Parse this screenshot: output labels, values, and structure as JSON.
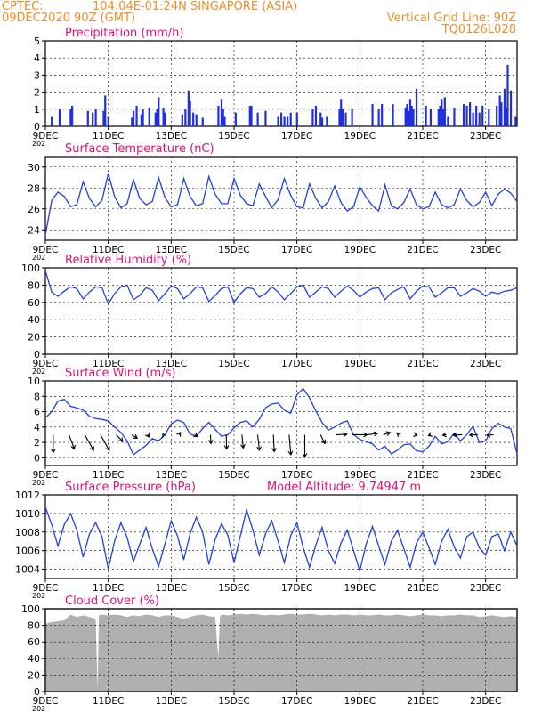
{
  "header": {
    "line1_left": "CPTEC:",
    "location": "104:04E-01:24N   SINGAPORE (ASIA)",
    "date_line": "09DEC2020 90Z (GMT)",
    "grid_note": "Vertical Grid Line: 90Z",
    "code": "TQ0126L028"
  },
  "colors": {
    "header": "#f08c28",
    "title": "#e0107a",
    "line": "#2040e0",
    "bar": "#2030e0",
    "cloud": "#b0b0b0",
    "arrow": "#000000"
  },
  "x_axis": {
    "ticks": [
      {
        "day": 9,
        "label": "9DEC"
      },
      {
        "day": 11,
        "label": "11DEC"
      },
      {
        "day": 13,
        "label": "13DEC"
      },
      {
        "day": 15,
        "label": "15DEC"
      },
      {
        "day": 17,
        "label": "17DEC"
      },
      {
        "day": 19,
        "label": "19DEC"
      },
      {
        "day": 21,
        "label": "21DEC"
      },
      {
        "day": 23,
        "label": "23DEC"
      }
    ],
    "year_fragment": "202",
    "range": [
      9,
      24
    ]
  },
  "chart_data": [
    {
      "type": "bar",
      "title": "Precipitation (mm/h)",
      "ylim": [
        0,
        5
      ],
      "yticks": [
        0,
        1,
        2,
        3,
        4,
        5
      ],
      "x": [
        9.2,
        9.45,
        9.8,
        9.85,
        10.35,
        10.5,
        10.6,
        10.85,
        10.9,
        11.0,
        11.75,
        11.8,
        11.9,
        12.05,
        12.1,
        12.3,
        12.5,
        12.55,
        12.6,
        12.75,
        12.8,
        13.35,
        13.45,
        13.55,
        13.6,
        13.7,
        13.8,
        14.0,
        14.5,
        14.6,
        14.65,
        14.7,
        15.05,
        15.5,
        15.55,
        15.75,
        16.0,
        16.4,
        16.5,
        16.6,
        16.7,
        16.8,
        17.0,
        17.5,
        17.6,
        17.75,
        17.8,
        17.95,
        18.35,
        18.4,
        18.45,
        18.55,
        18.75,
        19.4,
        19.6,
        19.7,
        20.05,
        20.45,
        20.5,
        20.55,
        20.6,
        20.65,
        20.7,
        20.8,
        21.1,
        21.25,
        21.5,
        21.55,
        21.6,
        21.65,
        21.7,
        21.8,
        22.0,
        22.3,
        22.4,
        22.5,
        22.6,
        22.7,
        22.8,
        22.9,
        23.1,
        23.35,
        23.45,
        23.5,
        23.6,
        23.65,
        23.7,
        23.8,
        23.95
      ],
      "values": [
        0.6,
        1.0,
        1.0,
        1.2,
        0.9,
        0.8,
        1.0,
        0.9,
        1.8,
        0.6,
        0.5,
        0.9,
        1.2,
        0.7,
        1.0,
        1.1,
        0.8,
        1.0,
        1.7,
        1.1,
        0.8,
        0.7,
        1.0,
        2.1,
        1.5,
        0.8,
        0.7,
        0.5,
        1.2,
        1.6,
        1.0,
        0.6,
        0.8,
        1.2,
        1.2,
        0.8,
        0.9,
        0.6,
        0.8,
        0.6,
        0.6,
        0.8,
        0.8,
        1.0,
        1.2,
        0.8,
        0.5,
        0.6,
        1.0,
        1.6,
        1.0,
        0.8,
        1.0,
        1.3,
        1.0,
        1.3,
        1.3,
        1.1,
        1.3,
        0.9,
        1.6,
        1.2,
        1.0,
        2.2,
        1.2,
        1.0,
        1.0,
        1.2,
        1.6,
        1.0,
        1.7,
        0.6,
        1.1,
        1.3,
        1.2,
        1.4,
        0.8,
        1.2,
        0.8,
        1.2,
        1.0,
        1.2,
        1.8,
        1.4,
        2.2,
        1.1,
        3.6,
        2.1,
        0.6
      ]
    },
    {
      "type": "line",
      "title": "Surface Temperature (nC)",
      "ylim": [
        23,
        31
      ],
      "yticks": [
        24,
        26,
        28,
        30
      ],
      "x": [
        9.0,
        9.2,
        9.4,
        9.6,
        9.8,
        10.0,
        10.2,
        10.4,
        10.6,
        10.8,
        11.0,
        11.2,
        11.4,
        11.6,
        11.8,
        12.0,
        12.2,
        12.4,
        12.6,
        12.8,
        13.0,
        13.2,
        13.4,
        13.6,
        13.8,
        14.0,
        14.2,
        14.4,
        14.6,
        14.8,
        15.0,
        15.2,
        15.4,
        15.6,
        15.8,
        16.0,
        16.2,
        16.4,
        16.6,
        16.8,
        17.0,
        17.2,
        17.4,
        17.6,
        17.8,
        18.0,
        18.2,
        18.4,
        18.6,
        18.8,
        19.0,
        19.2,
        19.4,
        19.6,
        19.8,
        20.0,
        20.2,
        20.4,
        20.6,
        20.8,
        21.0,
        21.2,
        21.4,
        21.6,
        21.8,
        22.0,
        22.2,
        22.4,
        22.6,
        22.8,
        23.0,
        23.2,
        23.4,
        23.6,
        23.8,
        24.0
      ],
      "values": [
        23.5,
        26.8,
        27.6,
        27.2,
        26.2,
        26.4,
        28.6,
        27.0,
        26.2,
        26.8,
        29.4,
        27.2,
        26.1,
        26.5,
        28.8,
        27.0,
        26.4,
        26.7,
        29.0,
        27.1,
        26.2,
        26.4,
        28.9,
        27.2,
        26.3,
        26.5,
        29.1,
        27.4,
        26.5,
        26.5,
        28.9,
        27.3,
        26.5,
        26.3,
        28.4,
        27.2,
        26.1,
        26.9,
        28.9,
        27.3,
        26.2,
        26.1,
        28.4,
        27.0,
        26.1,
        26.7,
        28.2,
        26.6,
        25.8,
        26.2,
        28.1,
        27.1,
        26.3,
        25.8,
        28.3,
        26.3,
        26.0,
        26.6,
        27.9,
        26.4,
        26.0,
        26.2,
        27.6,
        26.4,
        26.1,
        26.4,
        27.9,
        26.8,
        26.2,
        26.6,
        27.6,
        26.3,
        27.4,
        27.9,
        27.5,
        26.7
      ]
    },
    {
      "type": "line",
      "title": "Relative Humidity (%)",
      "ylim": [
        0,
        100
      ],
      "yticks": [
        0,
        20,
        40,
        60,
        80,
        100
      ],
      "x": [
        9.0,
        9.2,
        9.4,
        9.6,
        9.8,
        10.0,
        10.2,
        10.4,
        10.6,
        10.8,
        11.0,
        11.2,
        11.4,
        11.6,
        11.8,
        12.0,
        12.2,
        12.4,
        12.6,
        12.8,
        13.0,
        13.2,
        13.4,
        13.6,
        13.8,
        14.0,
        14.2,
        14.4,
        14.6,
        14.8,
        15.0,
        15.2,
        15.4,
        15.6,
        15.8,
        16.0,
        16.2,
        16.4,
        16.6,
        16.8,
        17.0,
        17.2,
        17.4,
        17.6,
        17.8,
        18.0,
        18.2,
        18.4,
        18.6,
        18.8,
        19.0,
        19.2,
        19.4,
        19.6,
        19.8,
        20.0,
        20.2,
        20.4,
        20.6,
        20.8,
        21.0,
        21.2,
        21.4,
        21.6,
        21.8,
        22.0,
        22.2,
        22.4,
        22.6,
        22.8,
        23.0,
        23.2,
        23.4,
        23.6,
        23.8,
        24.0
      ],
      "values": [
        97,
        72,
        67,
        73,
        78,
        76,
        64,
        72,
        78,
        77,
        58,
        70,
        78,
        80,
        63,
        68,
        77,
        74,
        62,
        70,
        79,
        76,
        64,
        70,
        78,
        77,
        61,
        68,
        76,
        78,
        60,
        70,
        77,
        76,
        66,
        70,
        78,
        72,
        63,
        70,
        78,
        80,
        66,
        72,
        78,
        76,
        66,
        73,
        79,
        74,
        66,
        72,
        76,
        77,
        63,
        71,
        75,
        78,
        64,
        73,
        79,
        78,
        66,
        71,
        77,
        77,
        67,
        71,
        76,
        73,
        67,
        72,
        70,
        73,
        74,
        77
      ]
    },
    {
      "type": "line",
      "title": "Surface Wind (m/s)",
      "ylim": [
        -1,
        10
      ],
      "yticks": [
        0,
        2,
        4,
        6,
        8,
        10
      ],
      "x": [
        9.0,
        9.2,
        9.4,
        9.6,
        9.8,
        10.0,
        10.2,
        10.4,
        10.6,
        10.8,
        11.0,
        11.2,
        11.4,
        11.6,
        11.8,
        12.0,
        12.2,
        12.4,
        12.6,
        12.8,
        13.0,
        13.2,
        13.4,
        13.6,
        13.8,
        14.0,
        14.2,
        14.4,
        14.6,
        14.8,
        15.0,
        15.2,
        15.4,
        15.6,
        15.8,
        16.0,
        16.2,
        16.4,
        16.6,
        16.8,
        17.0,
        17.2,
        17.4,
        17.6,
        17.8,
        18.0,
        18.2,
        18.4,
        18.6,
        18.8,
        19.0,
        19.2,
        19.4,
        19.6,
        19.8,
        20.0,
        20.2,
        20.4,
        20.6,
        20.8,
        21.0,
        21.2,
        21.4,
        21.6,
        21.8,
        22.0,
        22.2,
        22.4,
        22.6,
        22.8,
        23.0,
        23.2,
        23.4,
        23.6,
        23.8,
        24.0
      ],
      "values": [
        5.2,
        6.0,
        7.4,
        7.6,
        6.7,
        6.5,
        6.2,
        5.4,
        5.1,
        5.0,
        4.8,
        4.0,
        3.3,
        2.2,
        0.4,
        1.0,
        1.6,
        2.5,
        2.2,
        3.0,
        4.4,
        4.9,
        4.6,
        3.1,
        2.8,
        3.8,
        4.6,
        3.7,
        2.8,
        3.0,
        3.9,
        4.6,
        4.8,
        4.0,
        5.0,
        6.5,
        7.0,
        7.1,
        6.2,
        5.8,
        8.2,
        9.0,
        7.8,
        6.1,
        4.6,
        3.6,
        4.0,
        4.5,
        4.8,
        3.0,
        2.4,
        2.1,
        1.8,
        1.0,
        1.5,
        0.5,
        1.0,
        1.7,
        1.8,
        0.9,
        0.8,
        1.5,
        2.8,
        1.8,
        2.1,
        3.2,
        2.2,
        3.0,
        4.1,
        2.0,
        2.2,
        3.8,
        4.5,
        4.0,
        3.8,
        0.5
      ],
      "arrows_day": [
        9.25,
        9.75,
        10.25,
        10.75,
        11.25,
        11.75,
        12.25,
        12.75,
        13.25,
        13.75,
        14.25,
        14.75,
        15.25,
        15.75,
        16.25,
        16.75,
        17.25,
        17.75,
        18.25,
        18.75,
        19.25,
        19.75,
        20.25,
        20.75,
        21.25,
        21.75,
        22.25,
        22.75,
        23.25
      ],
      "arrows_u": [
        0.0,
        1.2,
        2.0,
        2.0,
        1.5,
        1.2,
        0.3,
        -0.1,
        0.3,
        0.6,
        0.1,
        0.1,
        0.3,
        0.4,
        0.2,
        0.4,
        0.0,
        1.0,
        2.4,
        3.4,
        2.2,
        1.5,
        -0.5,
        0.5,
        -0.5,
        -0.8,
        -2.0,
        -1.8,
        -1.5
      ],
      "arrows_v": [
        -4.0,
        -3.2,
        -3.5,
        -3.5,
        -1.5,
        -0.8,
        -0.5,
        0.2,
        0.5,
        -0.4,
        -2.0,
        -3.2,
        -3.0,
        -3.5,
        -3.8,
        -4.5,
        -5.0,
        -2.0,
        0.1,
        0.0,
        0.3,
        0.5,
        0.4,
        -0.1,
        -0.2,
        -0.1,
        -0.1,
        -0.1,
        -0.1
      ]
    },
    {
      "type": "line",
      "title": "Surface Pressure (hPa)",
      "subtitle": "Model Altitude: 9.74947 m",
      "ylim": [
        1003,
        1012
      ],
      "yticks": [
        1004,
        1006,
        1008,
        1010,
        1012
      ],
      "x": [
        9.0,
        9.2,
        9.4,
        9.6,
        9.8,
        10.0,
        10.2,
        10.4,
        10.6,
        10.8,
        11.0,
        11.2,
        11.4,
        11.6,
        11.8,
        12.0,
        12.2,
        12.4,
        12.6,
        12.8,
        13.0,
        13.2,
        13.4,
        13.6,
        13.8,
        14.0,
        14.2,
        14.4,
        14.6,
        14.8,
        15.0,
        15.2,
        15.4,
        15.6,
        15.8,
        16.0,
        16.2,
        16.4,
        16.6,
        16.8,
        17.0,
        17.2,
        17.4,
        17.6,
        17.8,
        18.0,
        18.2,
        18.4,
        18.6,
        18.8,
        19.0,
        19.2,
        19.4,
        19.6,
        19.8,
        20.0,
        20.2,
        20.4,
        20.6,
        20.8,
        21.0,
        21.2,
        21.4,
        21.6,
        21.8,
        22.0,
        22.2,
        22.4,
        22.6,
        22.8,
        23.0,
        23.2,
        23.4,
        23.6,
        23.8,
        24.0
      ],
      "values": [
        1010.7,
        1008.8,
        1006.5,
        1008.8,
        1010.0,
        1008.2,
        1005.3,
        1007.8,
        1009.0,
        1007.5,
        1004.0,
        1007.0,
        1009.0,
        1007.4,
        1004.8,
        1006.7,
        1008.5,
        1006.2,
        1004.3,
        1006.7,
        1009.2,
        1007.6,
        1005.0,
        1007.8,
        1009.6,
        1008.0,
        1004.5,
        1007.2,
        1008.9,
        1007.7,
        1004.7,
        1007.6,
        1010.4,
        1008.2,
        1005.5,
        1007.8,
        1009.2,
        1007.0,
        1004.7,
        1007.6,
        1009.0,
        1006.3,
        1004.2,
        1006.6,
        1008.5,
        1006.0,
        1004.6,
        1006.8,
        1008.2,
        1006.0,
        1003.8,
        1006.7,
        1008.6,
        1006.5,
        1004.5,
        1007.0,
        1008.2,
        1006.2,
        1004.2,
        1006.8,
        1008.0,
        1006.3,
        1004.5,
        1007.0,
        1008.3,
        1006.4,
        1005.2,
        1007.5,
        1008.0,
        1006.3,
        1005.5,
        1007.5,
        1007.8,
        1006.0,
        1008.0,
        1006.5
      ]
    },
    {
      "type": "area",
      "title": "Cloud Cover (%)",
      "ylim": [
        0,
        100
      ],
      "yticks": [
        0,
        20,
        40,
        60,
        80,
        100
      ],
      "x": [
        9.0,
        9.2,
        9.4,
        9.6,
        9.8,
        10.0,
        10.2,
        10.4,
        10.6,
        10.66,
        10.7,
        10.8,
        11.0,
        11.2,
        11.4,
        11.6,
        11.8,
        12.0,
        12.2,
        12.4,
        12.6,
        12.8,
        13.0,
        13.2,
        13.4,
        13.6,
        13.8,
        14.0,
        14.2,
        14.4,
        14.5,
        14.55,
        14.6,
        14.8,
        15.0,
        15.2,
        15.4,
        15.6,
        15.8,
        16.0,
        16.2,
        16.4,
        16.6,
        16.8,
        17.0,
        17.2,
        17.4,
        17.6,
        17.8,
        18.0,
        18.2,
        18.4,
        18.6,
        18.8,
        19.0,
        19.2,
        19.4,
        19.6,
        19.8,
        20.0,
        20.2,
        20.4,
        20.6,
        20.8,
        21.0,
        21.2,
        21.4,
        21.6,
        21.8,
        22.0,
        22.2,
        22.4,
        22.6,
        22.8,
        23.0,
        23.2,
        23.4,
        23.6,
        23.8,
        24.0
      ],
      "values": [
        82,
        84,
        85,
        86,
        93,
        90,
        92,
        90,
        88,
        3,
        92,
        93,
        92,
        93,
        92,
        90,
        92,
        91,
        93,
        92,
        90,
        92,
        92,
        90,
        88,
        90,
        92,
        93,
        91,
        90,
        40,
        90,
        93,
        92,
        93,
        94,
        93,
        94,
        93,
        92,
        93,
        92,
        93,
        94,
        93,
        93,
        94,
        93,
        92,
        93,
        92,
        93,
        93,
        92,
        93,
        92,
        92,
        93,
        92,
        92,
        93,
        92,
        91,
        92,
        93,
        92,
        92,
        91,
        92,
        92,
        93,
        92,
        92,
        90,
        91,
        92,
        91,
        90,
        91,
        90
      ]
    }
  ]
}
